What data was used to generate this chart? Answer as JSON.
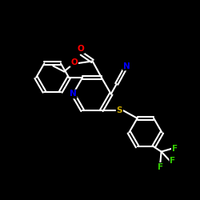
{
  "background_color": "#000000",
  "bond_color": "#ffffff",
  "bond_width": 1.5,
  "atom_colors": {
    "O": "#ff0000",
    "N": "#0000ff",
    "S": "#ccaa00",
    "F": "#33cc00",
    "C": "#ffffff"
  },
  "figsize": [
    2.5,
    2.5
  ],
  "dpi": 100
}
